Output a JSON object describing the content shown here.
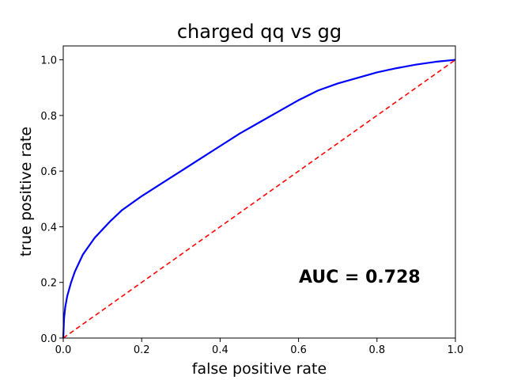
{
  "chart_data": {
    "type": "line",
    "title": "charged qq vs gg",
    "xlabel": "false positive rate",
    "ylabel": "true positive rate",
    "xlim": [
      0,
      1
    ],
    "ylim": [
      0,
      1.05
    ],
    "xticks": [
      "0.0",
      "0.2",
      "0.4",
      "0.6",
      "0.8",
      "1.0"
    ],
    "yticks": [
      "0.0",
      "0.2",
      "0.4",
      "0.6",
      "0.8",
      "1.0"
    ],
    "grid": false,
    "annotation": "AUC = 0.728",
    "series": [
      {
        "color": "#0000ff",
        "style": "solid",
        "x": [
          0,
          0.002,
          0.005,
          0.01,
          0.02,
          0.03,
          0.04,
          0.05,
          0.06,
          0.08,
          0.1,
          0.12,
          0.15,
          0.2,
          0.25,
          0.3,
          0.35,
          0.4,
          0.45,
          0.5,
          0.55,
          0.6,
          0.65,
          0.7,
          0.75,
          0.8,
          0.85,
          0.9,
          0.95,
          1.0
        ],
        "y": [
          0,
          0.07,
          0.11,
          0.15,
          0.2,
          0.24,
          0.27,
          0.3,
          0.32,
          0.36,
          0.39,
          0.42,
          0.46,
          0.51,
          0.555,
          0.6,
          0.645,
          0.69,
          0.735,
          0.775,
          0.815,
          0.855,
          0.89,
          0.915,
          0.935,
          0.955,
          0.97,
          0.983,
          0.993,
          1.0
        ]
      },
      {
        "color": "#ff0000",
        "style": "dashed",
        "x": [
          0,
          1
        ],
        "y": [
          0,
          1
        ]
      }
    ]
  }
}
